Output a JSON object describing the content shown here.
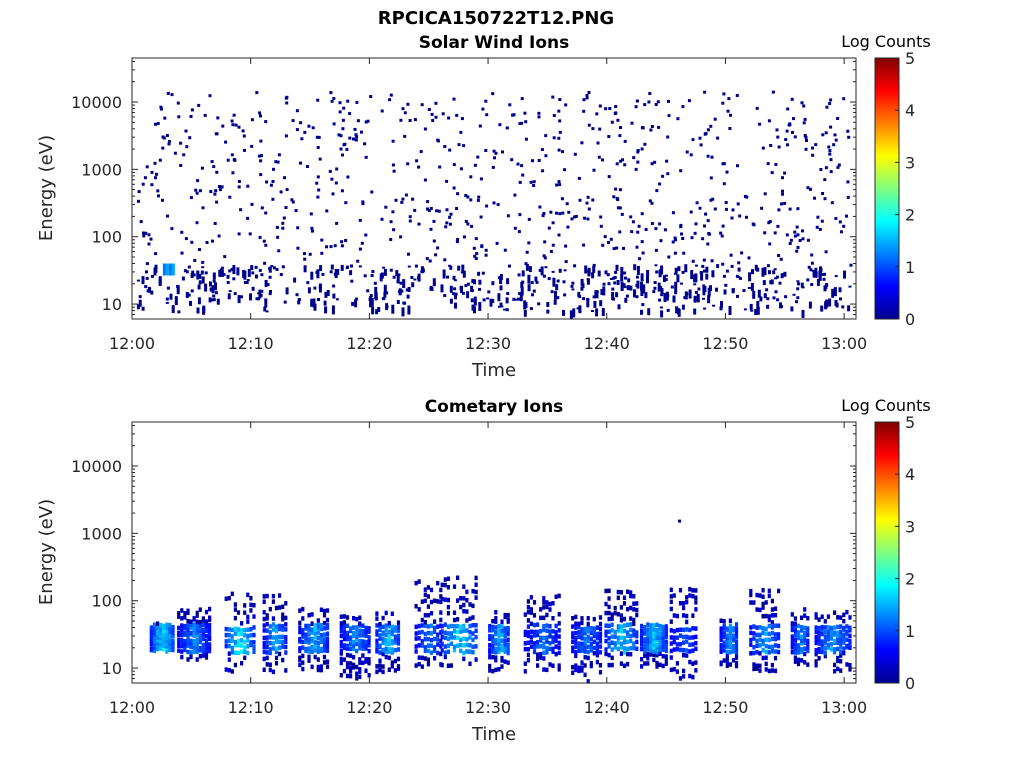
{
  "figure_title": "RPCICA150722T12.PNG",
  "chart_data": [
    {
      "type": "heatmap",
      "title": "Solar Wind Ions",
      "xlabel": "Time",
      "ylabel": "Energy (eV)",
      "yscale": "log",
      "x_ticks": [
        "12:00",
        "12:10",
        "12:20",
        "12:30",
        "12:40",
        "12:50",
        "13:00"
      ],
      "y_ticks": [
        "10",
        "100",
        "1000",
        "10000"
      ],
      "xlim_minutes": [
        0,
        61
      ],
      "ylim": [
        6,
        45000
      ],
      "colorbar": {
        "label": "Log Counts",
        "min": 0,
        "max": 5,
        "ticks": [
          "0",
          "1",
          "2",
          "3",
          "4",
          "5"
        ],
        "colormap": "jet"
      },
      "description_values": {
        "bulk_pattern": "sparse single-count pixels (log counts ~0) scattered 10–15000 eV",
        "low_energy_band": "denser counts between ~8 and ~40 eV",
        "hotspot": {
          "time": "12:03",
          "energy_eV": 40,
          "log_counts": 1.2
        }
      }
    },
    {
      "type": "heatmap",
      "title": "Cometary Ions",
      "xlabel": "Time",
      "ylabel": "Energy (eV)",
      "yscale": "log",
      "x_ticks": [
        "12:00",
        "12:10",
        "12:20",
        "12:30",
        "12:40",
        "12:50",
        "13:00"
      ],
      "y_ticks": [
        "10",
        "100",
        "1000",
        "10000"
      ],
      "xlim_minutes": [
        0,
        61
      ],
      "ylim": [
        6,
        45000
      ],
      "colorbar": {
        "label": "Log Counts",
        "min": 0,
        "max": 5,
        "ticks": [
          "0",
          "1",
          "2",
          "3",
          "4",
          "5"
        ],
        "colormap": "jet"
      },
      "bursts": [
        {
          "start_min": 1.5,
          "end_min": 3.5,
          "emin": 20,
          "emax": 55,
          "peak": 2.0
        },
        {
          "start_min": 3.8,
          "end_min": 6.5,
          "emin": 15,
          "emax": 90,
          "peak": 1.4
        },
        {
          "start_min": 7.8,
          "end_min": 10.2,
          "emin": 10,
          "emax": 170,
          "peak": 2.1
        },
        {
          "start_min": 11.0,
          "end_min": 13.0,
          "emin": 10,
          "emax": 150,
          "peak": 1.6
        },
        {
          "start_min": 14.0,
          "end_min": 16.5,
          "emin": 10,
          "emax": 90,
          "peak": 1.7
        },
        {
          "start_min": 17.5,
          "end_min": 20.0,
          "emin": 8,
          "emax": 70,
          "peak": 1.5
        },
        {
          "start_min": 20.5,
          "end_min": 22.5,
          "emin": 10,
          "emax": 80,
          "peak": 1.8
        },
        {
          "start_min": 23.8,
          "end_min": 26.0,
          "emin": 12,
          "emax": 250,
          "peak": 1.4
        },
        {
          "start_min": 26.0,
          "end_min": 29.0,
          "emin": 12,
          "emax": 280,
          "peak": 1.9
        },
        {
          "start_min": 30.0,
          "end_min": 31.8,
          "emin": 10,
          "emax": 80,
          "peak": 1.7
        },
        {
          "start_min": 33.0,
          "end_min": 36.0,
          "emin": 10,
          "emax": 150,
          "peak": 1.3
        },
        {
          "start_min": 37.0,
          "end_min": 39.5,
          "emin": 7,
          "emax": 70,
          "peak": 1.4
        },
        {
          "start_min": 39.8,
          "end_min": 42.5,
          "emin": 12,
          "emax": 180,
          "peak": 1.9
        },
        {
          "start_min": 42.8,
          "end_min": 45.0,
          "emin": 12,
          "emax": 50,
          "peak": 1.8
        },
        {
          "start_min": 45.3,
          "end_min": 47.5,
          "emin": 8,
          "emax": 200,
          "peak": 1.2
        },
        {
          "start_min": 49.5,
          "end_min": 51.0,
          "emin": 12,
          "emax": 60,
          "peak": 1.5
        },
        {
          "start_min": 52.0,
          "end_min": 54.5,
          "emin": 10,
          "emax": 190,
          "peak": 1.6
        },
        {
          "start_min": 55.5,
          "end_min": 57.0,
          "emin": 12,
          "emax": 90,
          "peak": 1.5
        },
        {
          "start_min": 57.5,
          "end_min": 60.5,
          "emin": 10,
          "emax": 80,
          "peak": 1.6
        }
      ],
      "isolated_points": [
        {
          "time": "12:46",
          "energy_eV": 1600,
          "log_counts": 0
        }
      ]
    }
  ]
}
